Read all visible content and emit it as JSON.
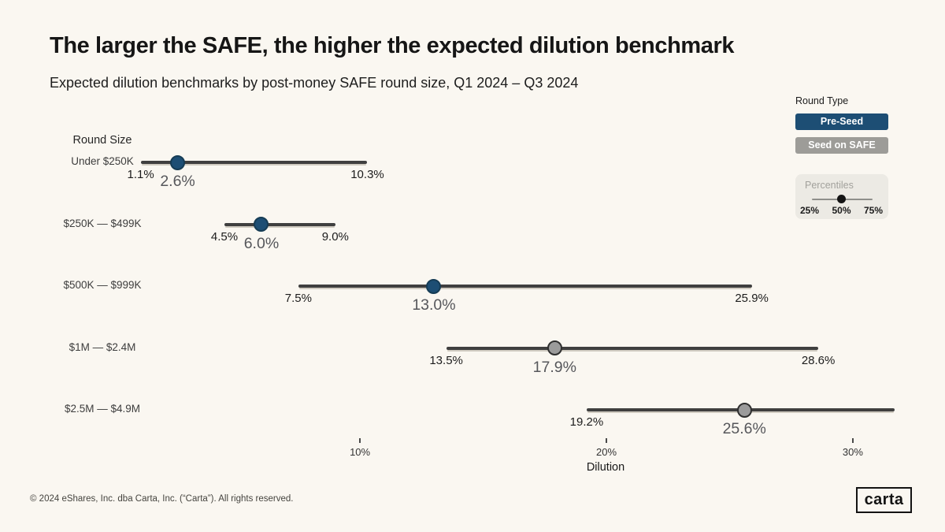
{
  "page": {
    "title": "The larger the SAFE, the higher the expected dilution benchmark",
    "subtitle": "Expected dilution benchmarks by post-money SAFE round size, Q1 2024 – Q3 2024",
    "footer": "© 2024 eShares, Inc. dba Carta, Inc. (“Carta”). All rights reserved.",
    "logo_text": "carta"
  },
  "controls": {
    "round_type_label": "Round Type",
    "buttons": [
      {
        "label": "Pre-Seed",
        "selected": true
      },
      {
        "label": "Seed on SAFE",
        "selected": false
      }
    ],
    "percentiles": {
      "label": "Percentiles",
      "ticks": [
        "25%",
        "50%",
        "75%"
      ],
      "selected": "50%"
    }
  },
  "colors": {
    "background": "#FAF7F1",
    "navy": "#1D4E74",
    "navy_dot_border": "#163C55",
    "gray_button": "#9D9C98",
    "gray_dot": "#9B9B9B",
    "gray_dot_border": "#2F2F2F",
    "line": "#3F3F3F"
  },
  "chart_data": {
    "type": "dumbbell-range",
    "title": "Expected dilution benchmarks by post-money SAFE round size",
    "round_size_header": "Round Size",
    "xlabel": "Dilution",
    "x_ticks": [
      {
        "label": "10%",
        "value": 10
      },
      {
        "label": "20%",
        "value": 20
      },
      {
        "label": "30%",
        "value": 30
      }
    ],
    "x_axis_range_pct": [
      0,
      31.7
    ],
    "legend_note": "25th–75th percentile range with 50th percentile dot",
    "rows": [
      {
        "category": "Under $250K",
        "p25": 1.1,
        "p50": 2.6,
        "p75": 10.3,
        "p25_label": "1.1%",
        "p50_label": "2.6%",
        "p75_label": "10.3%",
        "dot": "navy"
      },
      {
        "category": "$250K — $499K",
        "p25": 4.5,
        "p50": 6.0,
        "p75": 9.0,
        "p25_label": "4.5%",
        "p50_label": "6.0%",
        "p75_label": "9.0%",
        "dot": "navy"
      },
      {
        "category": "$500K — $999K",
        "p25": 7.5,
        "p50": 13.0,
        "p75": 25.9,
        "p25_label": "7.5%",
        "p50_label": "13.0%",
        "p75_label": "25.9%",
        "dot": "navy"
      },
      {
        "category": "$1M — $2.4M",
        "p25": 13.5,
        "p50": 17.9,
        "p75": 28.6,
        "p25_label": "13.5%",
        "p50_label": "17.9%",
        "p75_label": "28.6%",
        "dot": "gray"
      },
      {
        "category": "$2.5M — $4.9M",
        "p25": 19.2,
        "p50": 25.6,
        "p75": null,
        "p25_label": "19.2%",
        "p50_label": "25.6%",
        "p75_label": null,
        "dot": "gray",
        "p75_clipped_at": 31.7
      }
    ]
  }
}
